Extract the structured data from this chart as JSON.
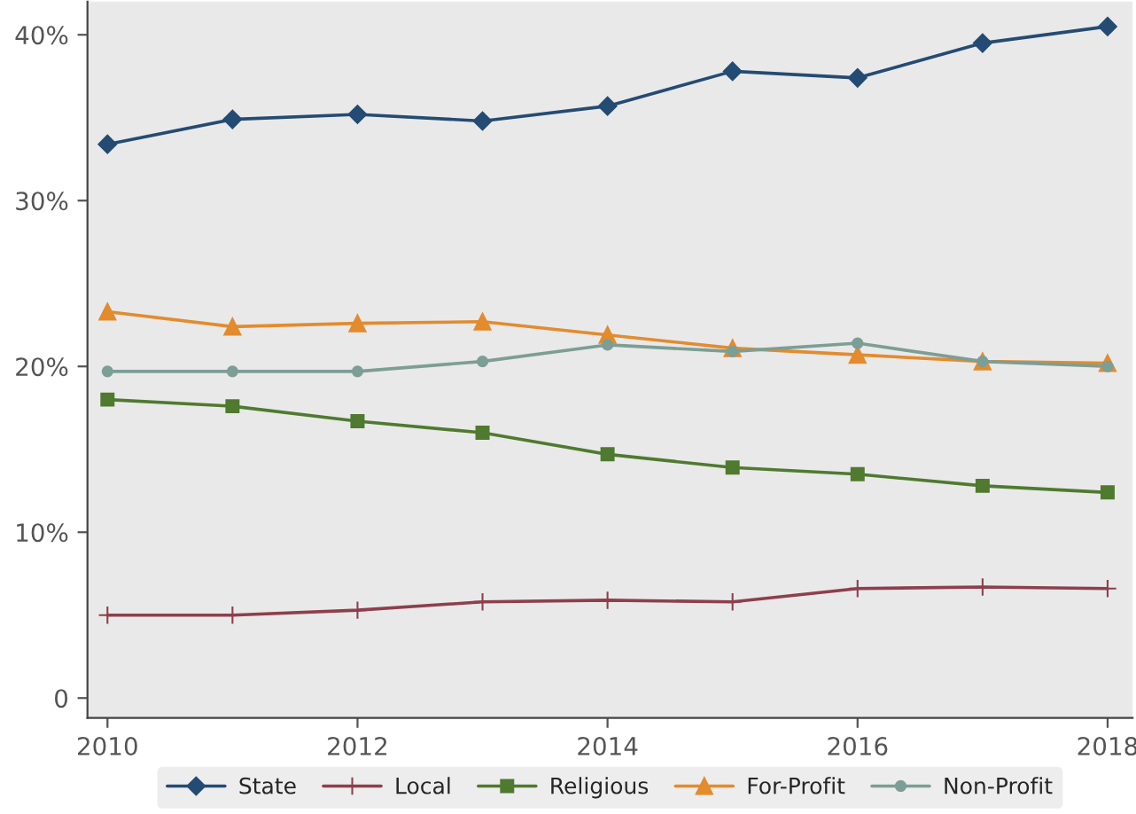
{
  "chart_data": {
    "type": "line",
    "x": [
      2010,
      2011,
      2012,
      2013,
      2014,
      2015,
      2016,
      2017,
      2018
    ],
    "series": [
      {
        "name": "State",
        "color": "#244b73",
        "marker": "diamond",
        "values": [
          33.4,
          34.9,
          35.2,
          34.8,
          35.7,
          37.8,
          37.4,
          39.5,
          40.5
        ]
      },
      {
        "name": "Local",
        "color": "#8e3f4c",
        "marker": "cross",
        "values": [
          5.0,
          5.0,
          5.3,
          5.8,
          5.9,
          5.8,
          6.6,
          6.7,
          6.6
        ]
      },
      {
        "name": "Religious",
        "color": "#4f7a2f",
        "marker": "square",
        "values": [
          18.0,
          17.6,
          16.7,
          16.0,
          14.7,
          13.9,
          13.5,
          12.8,
          12.4
        ]
      },
      {
        "name": "For-Profit",
        "color": "#e38b2d",
        "marker": "triangle",
        "values": [
          23.3,
          22.4,
          22.6,
          22.7,
          21.9,
          21.1,
          20.7,
          20.3,
          20.2
        ]
      },
      {
        "name": "Non-Profit",
        "color": "#7c9e95",
        "marker": "circle",
        "values": [
          19.7,
          19.7,
          19.7,
          20.3,
          21.3,
          20.9,
          21.4,
          20.3,
          20.0
        ]
      }
    ],
    "xlim": [
      2009.84,
      2018.2
    ],
    "xticks": [
      2010,
      2012,
      2014,
      2016,
      2018
    ],
    "ylim": [
      -1.2,
      42
    ],
    "yticks": [
      {
        "value": 0,
        "label": "0"
      },
      {
        "value": 10,
        "label": "10%"
      },
      {
        "value": 20,
        "label": "20%"
      },
      {
        "value": 30,
        "label": "30%"
      },
      {
        "value": 40,
        "label": "40%"
      }
    ],
    "grid": false,
    "legend": "bottom",
    "line_style": "solid"
  }
}
